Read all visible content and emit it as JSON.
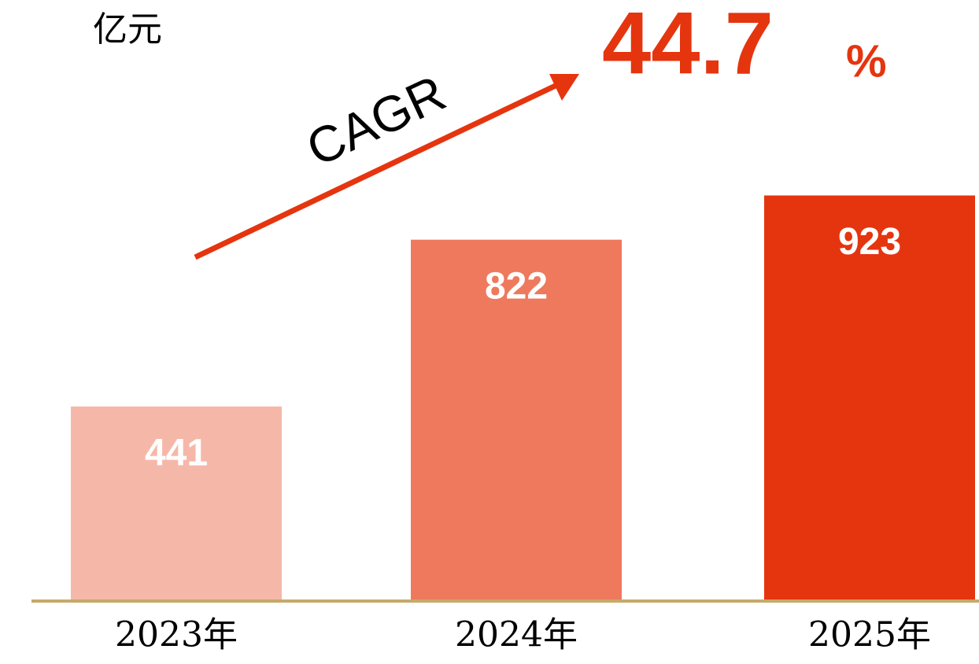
{
  "chart_data": {
    "type": "bar",
    "unit_label": "亿元",
    "categories": [
      "2023年",
      "2024年",
      "2025年"
    ],
    "values": [
      441,
      822,
      923
    ],
    "colors": [
      "#f5b8a8",
      "#ee795c",
      "#e5350f"
    ],
    "ylim": [
      0,
      1100
    ],
    "cagr": {
      "label": "CAGR",
      "value": 44.7,
      "unit": "%",
      "color": "#e5350f"
    }
  }
}
